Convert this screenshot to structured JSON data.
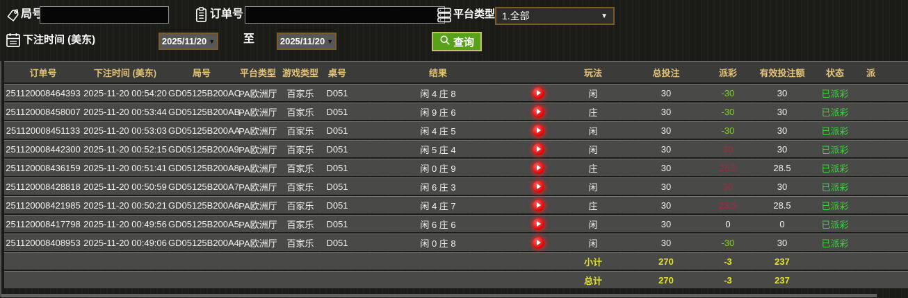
{
  "filters": {
    "round_label": "局号",
    "round_value": "",
    "order_label": "订单号",
    "order_value": "",
    "platform_label": "平台类型",
    "platform_value": "1.全部",
    "bet_time_label": "下注时间 (美东)",
    "date_from": "2025/11/20",
    "to_label": "至",
    "date_to": "2025/11/20",
    "query_label": "查询"
  },
  "table": {
    "headers": [
      "订单号",
      "下注时间 (美东)",
      "局号",
      "平台类型",
      "游戏类型",
      "桌号",
      "结果",
      "",
      "玩法",
      "总投注",
      "派彩",
      "有效投注额",
      "状态",
      "派"
    ],
    "rows": [
      {
        "order": "251120008464393",
        "time": "2025-11-20 00:54:20",
        "round": "GD05125B200AC",
        "platform": "PA欧洲厅",
        "game": "百家乐",
        "table": "D051",
        "result": "闲 4 庄 8",
        "play": "闲",
        "total": "30",
        "payout": "-30",
        "payout_color": "neg",
        "valid": "30",
        "status": "已派彩"
      },
      {
        "order": "251120008458007",
        "time": "2025-11-20 00:53:44",
        "round": "GD05125B200AB",
        "platform": "PA欧洲厅",
        "game": "百家乐",
        "table": "D051",
        "result": "闲 9 庄 6",
        "play": "庄",
        "total": "30",
        "payout": "-30",
        "payout_color": "neg",
        "valid": "30",
        "status": "已派彩"
      },
      {
        "order": "251120008451133",
        "time": "2025-11-20 00:53:03",
        "round": "GD05125B200AA",
        "platform": "PA欧洲厅",
        "game": "百家乐",
        "table": "D051",
        "result": "闲 4 庄 5",
        "play": "闲",
        "total": "30",
        "payout": "-30",
        "payout_color": "neg",
        "valid": "30",
        "status": "已派彩"
      },
      {
        "order": "251120008442300",
        "time": "2025-11-20 00:52:15",
        "round": "GD05125B200A9",
        "platform": "PA欧洲厅",
        "game": "百家乐",
        "table": "D051",
        "result": "闲 5 庄 4",
        "play": "闲",
        "total": "30",
        "payout": "30",
        "payout_color": "pos",
        "valid": "30",
        "status": "已派彩"
      },
      {
        "order": "251120008436159",
        "time": "2025-11-20 00:51:41",
        "round": "GD05125B200A8",
        "platform": "PA欧洲厅",
        "game": "百家乐",
        "table": "D051",
        "result": "闲 0 庄 9",
        "play": "庄",
        "total": "30",
        "payout": "28.5",
        "payout_color": "pos",
        "valid": "28.5",
        "status": "已派彩"
      },
      {
        "order": "251120008428818",
        "time": "2025-11-20 00:50:59",
        "round": "GD05125B200A7",
        "platform": "PA欧洲厅",
        "game": "百家乐",
        "table": "D051",
        "result": "闲 6 庄 3",
        "play": "闲",
        "total": "30",
        "payout": "30",
        "payout_color": "pos",
        "valid": "30",
        "status": "已派彩"
      },
      {
        "order": "251120008421985",
        "time": "2025-11-20 00:50:21",
        "round": "GD05125B200A6",
        "platform": "PA欧洲厅",
        "game": "百家乐",
        "table": "D051",
        "result": "闲 4 庄 7",
        "play": "庄",
        "total": "30",
        "payout": "28.5",
        "payout_color": "pos",
        "valid": "28.5",
        "status": "已派彩"
      },
      {
        "order": "251120008417798",
        "time": "2025-11-20 00:49:56",
        "round": "GD05125B200A5",
        "platform": "PA欧洲厅",
        "game": "百家乐",
        "table": "D051",
        "result": "闲 6 庄 6",
        "play": "闲",
        "total": "30",
        "payout": "0",
        "payout_color": "zero",
        "valid": "0",
        "status": "已派彩"
      },
      {
        "order": "251120008408953",
        "time": "2025-11-20 00:49:06",
        "round": "GD05125B200A4",
        "platform": "PA欧洲厅",
        "game": "百家乐",
        "table": "D051",
        "result": "闲 0 庄 8",
        "play": "闲",
        "total": "30",
        "payout": "-30",
        "payout_color": "neg",
        "valid": "30",
        "status": "已派彩"
      }
    ],
    "subtotal": {
      "label": "小计",
      "total": "270",
      "payout": "-3",
      "valid": "237"
    },
    "grand_total": {
      "label": "总计",
      "total": "270",
      "payout": "-3",
      "valid": "237"
    }
  },
  "colors": {
    "header_gold": "#e3c377",
    "status_paid_green": "#3bd43b",
    "payout_negative_green": "#7ed321",
    "payout_positive_red": "#a2293b",
    "totals_yellow": "#e3e42d",
    "query_button_green": "#58a21a",
    "picker_border_brown": "#7d5a26",
    "play_button_red": "#e30d0d"
  }
}
